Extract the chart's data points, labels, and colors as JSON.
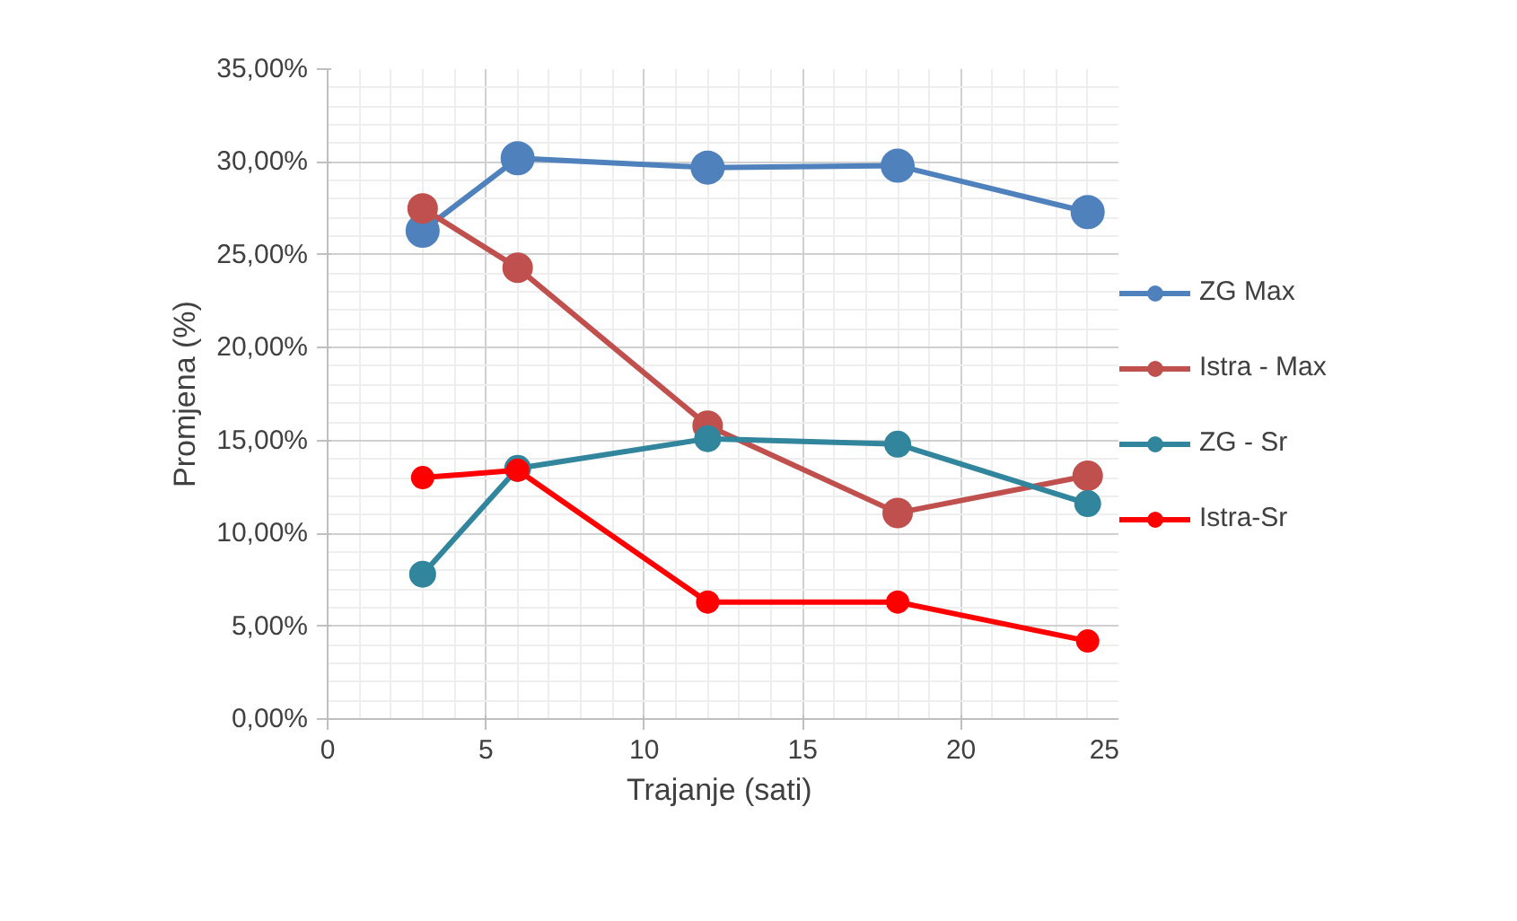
{
  "chart_data": {
    "type": "line",
    "xlabel": "Trajanje  (sati)",
    "ylabel": "Promjena (%)",
    "x": [
      3,
      6,
      12,
      18,
      24
    ],
    "series": [
      {
        "name": "ZG Max",
        "color": "#4f81bd",
        "values": [
          26.3,
          30.2,
          29.7,
          29.8,
          27.3
        ]
      },
      {
        "name": "Istra - Max",
        "color": "#c0504d",
        "values": [
          27.5,
          24.3,
          15.8,
          11.1,
          13.1
        ]
      },
      {
        "name": "ZG - Sr",
        "color": "#31859c",
        "values": [
          7.8,
          13.5,
          15.1,
          14.8,
          11.6
        ]
      },
      {
        "name": "Istra-Sr",
        "color": "#ff0000",
        "values": [
          13.0,
          13.4,
          6.3,
          6.3,
          4.2
        ]
      }
    ],
    "xlim": [
      0,
      25
    ],
    "xticks": [
      0,
      5,
      10,
      15,
      20,
      25
    ],
    "ylim": [
      0,
      35
    ],
    "yticks": [
      {
        "value": 0,
        "label": "0,00%"
      },
      {
        "value": 5,
        "label": "5,00%"
      },
      {
        "value": 10,
        "label": "10,00%"
      },
      {
        "value": 15,
        "label": "15,00%"
      },
      {
        "value": 20,
        "label": "20,00%"
      },
      {
        "value": 25,
        "label": "25,00%"
      },
      {
        "value": 30,
        "label": "30,00%"
      },
      {
        "value": 35,
        "label": "35,00%"
      }
    ],
    "grid": true,
    "legend": "right",
    "marker": "circle",
    "line_style": "solid"
  }
}
